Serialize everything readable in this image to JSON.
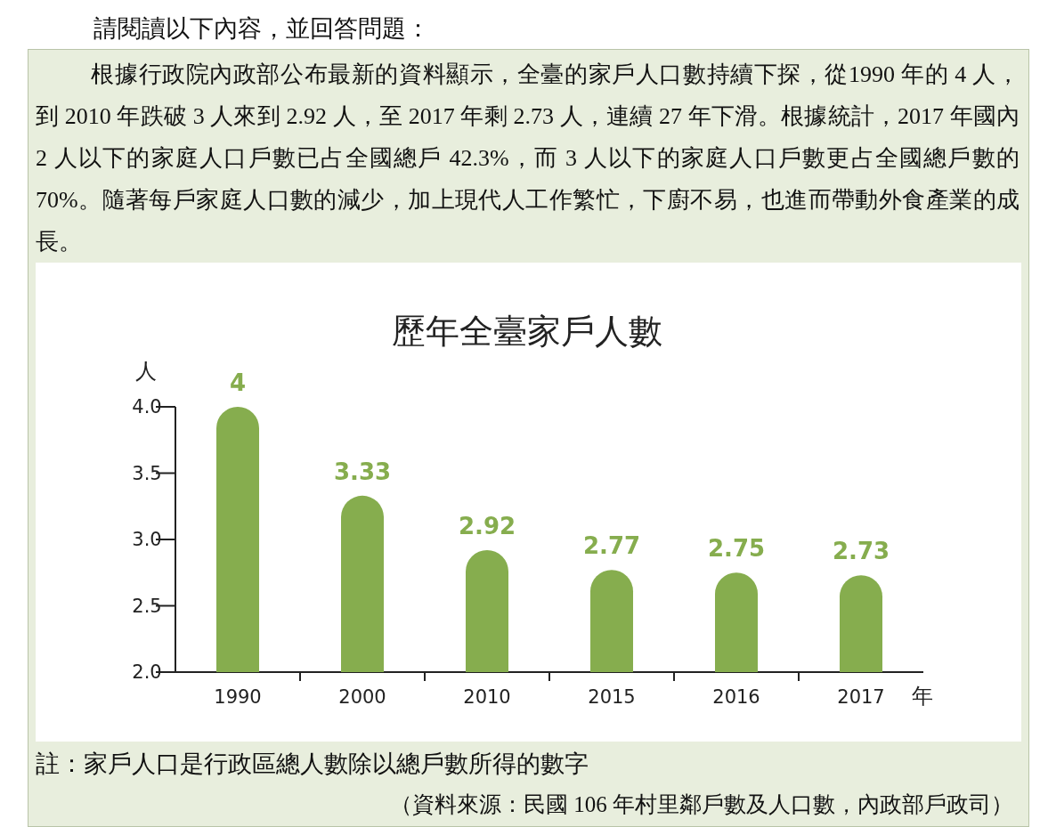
{
  "chart_data": {
    "type": "bar",
    "title": "歷年全臺家戶人數",
    "ylabel": "人",
    "xlabel": "年",
    "annotations": [
      "請閱讀以下內容，並回答問題：",
      "根據行政院內政部公布最新的資料顯示，全臺的家戶人口數持續下探，從1990 年的 4 人，到 2010 年跌破 3 人來到 2.92 人，至 2017 年剩 2.73 人，連續 27 年下滑。根據統計，2017 年國內 2 人以下的家庭人口戶數已占全國總戶 42.3%，而 3 人以下的家庭人口戶數更占全國總戶數的 70%。隨著每戶家庭人口數的減少，加上現代人工作繁忙，下廚不易，也進而帶動外食產業的成長。",
      "註：家戶人口是行政區總人數除以總戶數所得的數字",
      "（資料來源：民國 106 年村里鄰戶數及人口數，內政部戶政司）"
    ],
    "categories": [
      "1990",
      "2000",
      "2010",
      "2015",
      "2016",
      "2017"
    ],
    "values": [
      4,
      3.33,
      2.92,
      2.77,
      2.75,
      2.73
    ],
    "color": "#86ad4e",
    "ylim": [
      2.0,
      4.0
    ],
    "yticks": [
      {
        "value": 2.0,
        "label": "2.0"
      },
      {
        "value": 2.5,
        "label": "2.5"
      },
      {
        "value": 3.0,
        "label": "3.0"
      },
      {
        "value": 3.5,
        "label": "3.5"
      },
      {
        "value": 4.0,
        "label": "4.0"
      }
    ],
    "data_labels": true
  }
}
